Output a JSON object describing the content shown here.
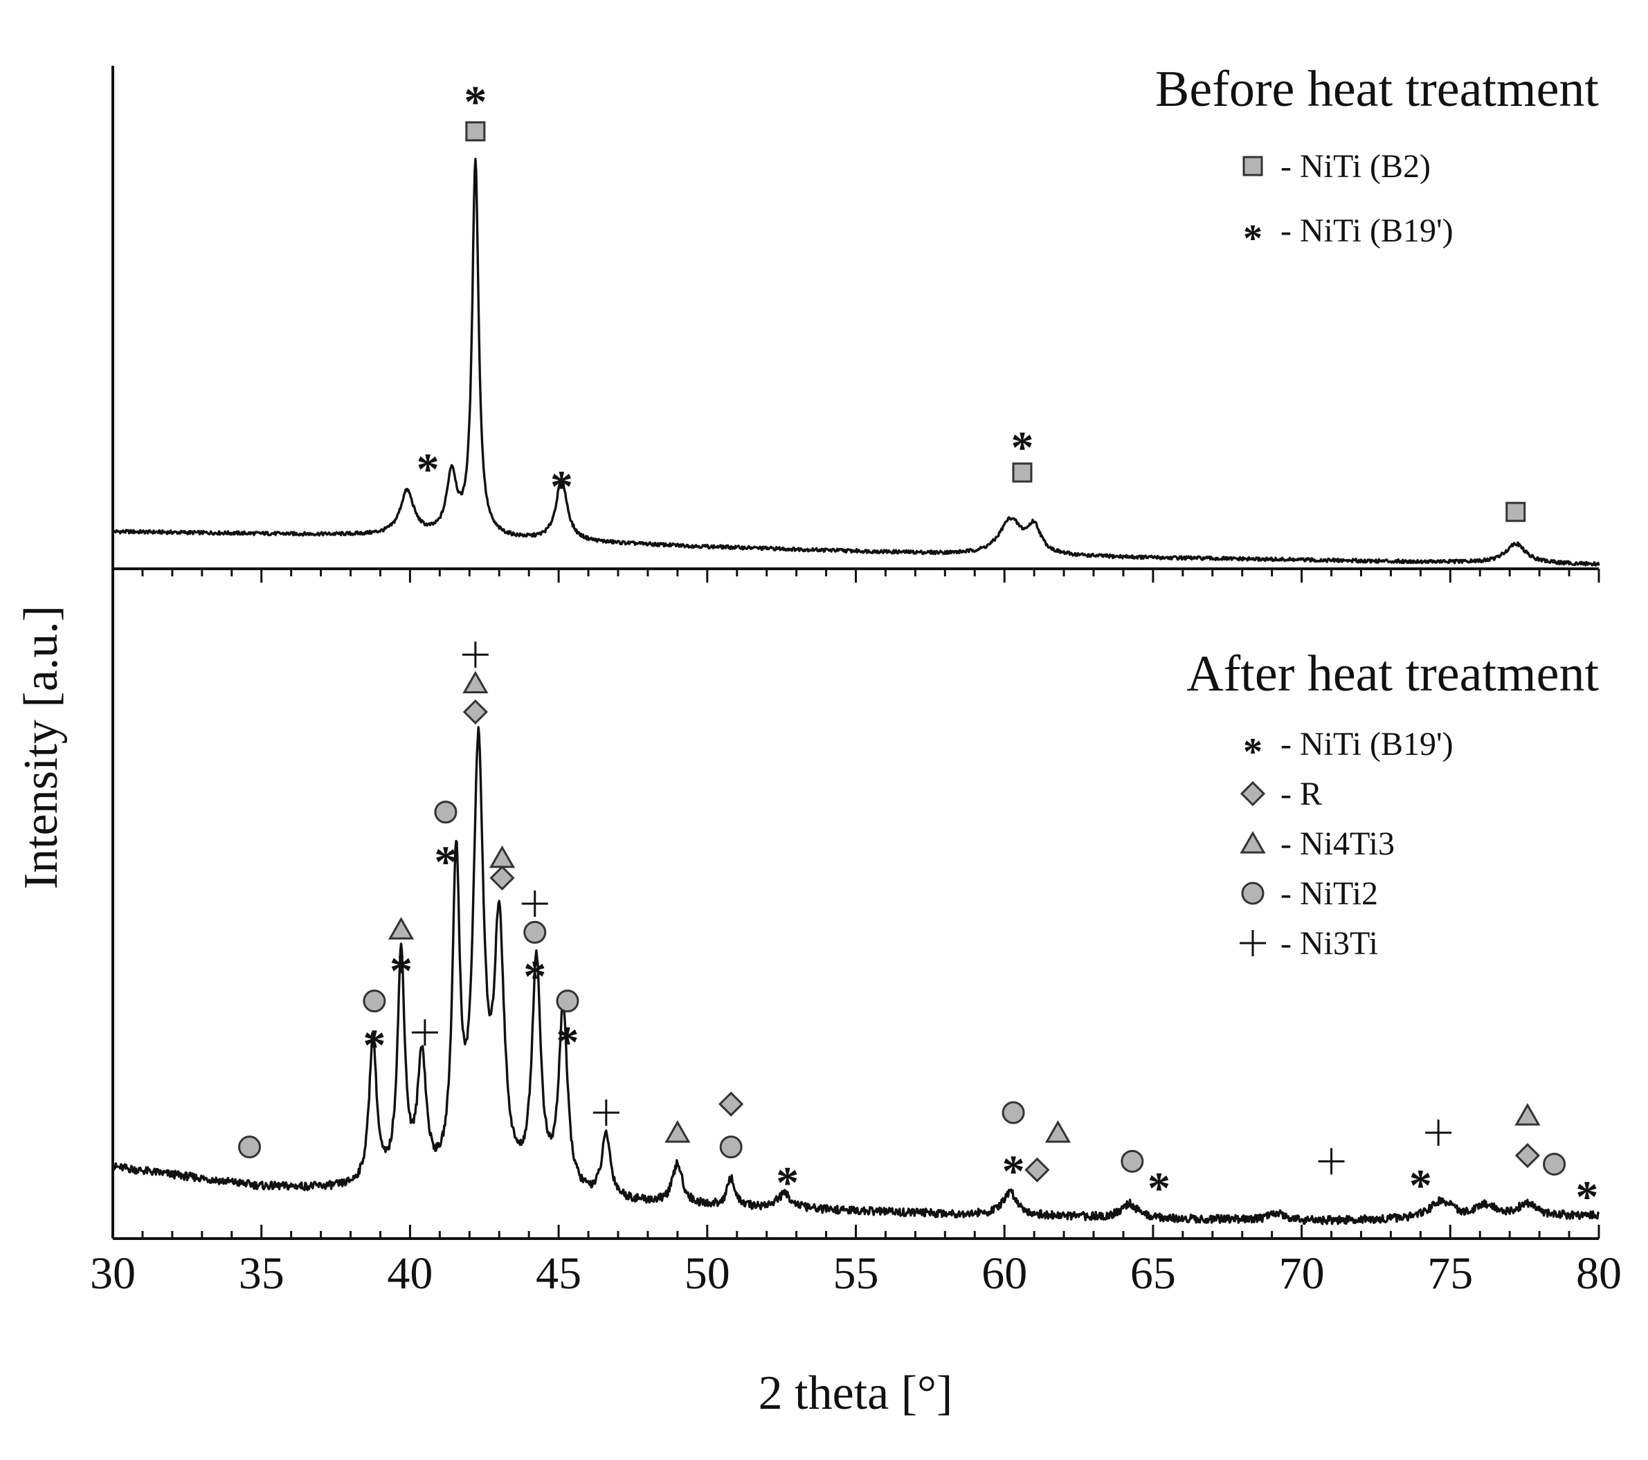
{
  "chart_data": {
    "type": "line",
    "xlabel": "2 theta [°]",
    "ylabel": "Intensity [a.u.]",
    "xlim": [
      30,
      80
    ],
    "xticks": [
      "30",
      "35",
      "40",
      "45",
      "50",
      "55",
      "60",
      "65",
      "70",
      "75",
      "80"
    ],
    "colors": {
      "line": "#111111",
      "marker_fill": "#b4b4b4",
      "marker_stroke": "#333333"
    },
    "panels": [
      {
        "title": "Before heat treatment",
        "series_name": "before",
        "ylim": [
          0,
          1.15
        ],
        "baseline": [
          [
            30,
            0.085
          ],
          [
            40,
            0.075
          ],
          [
            50,
            0.05
          ],
          [
            60,
            0.03
          ],
          [
            70,
            0.02
          ],
          [
            80,
            0.01
          ]
        ],
        "peaks": [
          [
            39.9,
            0.1,
            0.55
          ],
          [
            41.4,
            0.14,
            0.4
          ],
          [
            42.2,
            0.86,
            0.26
          ],
          [
            45.1,
            0.14,
            0.45
          ],
          [
            60.2,
            0.08,
            0.9
          ],
          [
            61.0,
            0.06,
            0.55
          ],
          [
            77.2,
            0.045,
            0.8
          ]
        ],
        "legend": [
          {
            "marker": "square",
            "label": "- NiTi (B2)"
          },
          {
            "marker": "star",
            "label": "- NiTi (B19')"
          }
        ],
        "markers": [
          {
            "x": 42.2,
            "y": 1.09,
            "symbol": "star"
          },
          {
            "x": 42.2,
            "y": 1.0,
            "symbol": "square"
          },
          {
            "x": 40.6,
            "y": 0.25,
            "symbol": "star"
          },
          {
            "x": 45.1,
            "y": 0.21,
            "symbol": "star"
          },
          {
            "x": 60.6,
            "y": 0.3,
            "symbol": "star"
          },
          {
            "x": 60.6,
            "y": 0.22,
            "symbol": "square"
          },
          {
            "x": 77.2,
            "y": 0.13,
            "symbol": "square"
          }
        ]
      },
      {
        "title": "After heat treatment",
        "series_name": "after",
        "ylim": [
          0,
          1.1
        ],
        "baseline": [
          [
            30,
            0.125
          ],
          [
            35,
            0.09
          ],
          [
            40,
            0.08
          ],
          [
            50,
            0.055
          ],
          [
            60,
            0.04
          ],
          [
            70,
            0.03
          ],
          [
            80,
            0.04
          ]
        ],
        "peaks": [
          [
            38.75,
            0.26,
            0.3
          ],
          [
            39.7,
            0.4,
            0.3
          ],
          [
            40.4,
            0.22,
            0.35
          ],
          [
            41.55,
            0.55,
            0.3
          ],
          [
            42.3,
            0.75,
            0.42
          ],
          [
            43.0,
            0.44,
            0.4
          ],
          [
            44.25,
            0.4,
            0.35
          ],
          [
            45.15,
            0.32,
            0.35
          ],
          [
            46.6,
            0.11,
            0.35
          ],
          [
            49.0,
            0.07,
            0.4
          ],
          [
            50.8,
            0.05,
            0.3
          ],
          [
            52.6,
            0.025,
            0.6
          ],
          [
            60.2,
            0.04,
            0.6
          ],
          [
            64.2,
            0.025,
            0.6
          ],
          [
            69.2,
            0.012,
            0.8
          ],
          [
            74.7,
            0.03,
            0.9
          ],
          [
            76.2,
            0.02,
            0.8
          ],
          [
            77.6,
            0.022,
            0.8
          ]
        ],
        "legend": [
          {
            "marker": "star",
            "label": "- NiTi (B19')"
          },
          {
            "marker": "diamond",
            "label": "- R"
          },
          {
            "marker": "triangle",
            "label": "- Ni4Ti3"
          },
          {
            "marker": "circle",
            "label": "- NiTi2"
          },
          {
            "marker": "plus",
            "label": "- Ni3Ti"
          }
        ],
        "markers": [
          {
            "x": 42.2,
            "y": 1.02,
            "symbol": "plus"
          },
          {
            "x": 42.2,
            "y": 0.97,
            "symbol": "triangle"
          },
          {
            "x": 42.2,
            "y": 0.92,
            "symbol": "diamond"
          },
          {
            "x": 41.2,
            "y": 0.745,
            "symbol": "circle"
          },
          {
            "x": 41.2,
            "y": 0.675,
            "symbol": "star"
          },
          {
            "x": 43.1,
            "y": 0.665,
            "symbol": "triangle"
          },
          {
            "x": 43.1,
            "y": 0.63,
            "symbol": "diamond"
          },
          {
            "x": 44.2,
            "y": 0.585,
            "symbol": "plus"
          },
          {
            "x": 44.2,
            "y": 0.535,
            "symbol": "circle"
          },
          {
            "x": 44.2,
            "y": 0.475,
            "symbol": "star"
          },
          {
            "x": 39.7,
            "y": 0.54,
            "symbol": "triangle"
          },
          {
            "x": 39.7,
            "y": 0.485,
            "symbol": "star"
          },
          {
            "x": 38.8,
            "y": 0.415,
            "symbol": "circle"
          },
          {
            "x": 38.8,
            "y": 0.355,
            "symbol": "star"
          },
          {
            "x": 40.5,
            "y": 0.36,
            "symbol": "plus"
          },
          {
            "x": 45.3,
            "y": 0.415,
            "symbol": "circle"
          },
          {
            "x": 45.3,
            "y": 0.36,
            "symbol": "star"
          },
          {
            "x": 34.6,
            "y": 0.16,
            "symbol": "circle"
          },
          {
            "x": 46.6,
            "y": 0.22,
            "symbol": "plus"
          },
          {
            "x": 49.0,
            "y": 0.185,
            "symbol": "triangle"
          },
          {
            "x": 50.8,
            "y": 0.235,
            "symbol": "diamond"
          },
          {
            "x": 50.8,
            "y": 0.16,
            "symbol": "circle"
          },
          {
            "x": 52.7,
            "y": 0.115,
            "symbol": "star"
          },
          {
            "x": 60.3,
            "y": 0.22,
            "symbol": "circle"
          },
          {
            "x": 60.3,
            "y": 0.135,
            "symbol": "star"
          },
          {
            "x": 61.1,
            "y": 0.12,
            "symbol": "diamond"
          },
          {
            "x": 61.8,
            "y": 0.185,
            "symbol": "triangle"
          },
          {
            "x": 64.3,
            "y": 0.135,
            "symbol": "circle"
          },
          {
            "x": 65.2,
            "y": 0.105,
            "symbol": "star"
          },
          {
            "x": 71.0,
            "y": 0.135,
            "symbol": "plus"
          },
          {
            "x": 74.0,
            "y": 0.11,
            "symbol": "star"
          },
          {
            "x": 74.6,
            "y": 0.185,
            "symbol": "plus"
          },
          {
            "x": 77.6,
            "y": 0.215,
            "symbol": "triangle"
          },
          {
            "x": 77.6,
            "y": 0.145,
            "symbol": "diamond"
          },
          {
            "x": 78.5,
            "y": 0.13,
            "symbol": "circle"
          },
          {
            "x": 79.6,
            "y": 0.09,
            "symbol": "star"
          }
        ]
      }
    ]
  }
}
